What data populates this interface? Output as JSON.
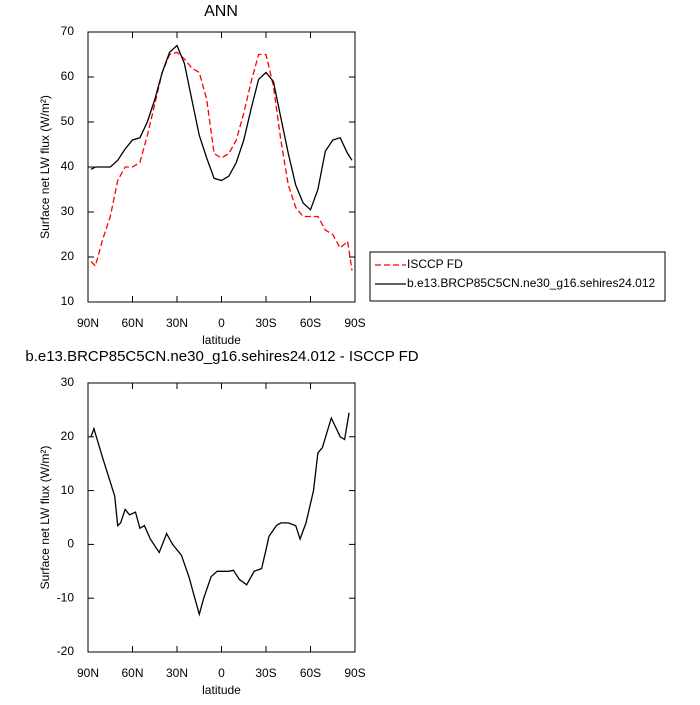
{
  "chart_data": [
    {
      "type": "line",
      "title": "ANN",
      "xlabel": "latitude",
      "ylabel": "Surface net LW flux (W/m²)",
      "x": [
        88,
        85,
        80,
        75,
        70,
        65,
        60,
        55,
        50,
        45,
        40,
        35,
        30,
        25,
        20,
        15,
        10,
        5,
        0,
        -5,
        -10,
        -15,
        -20,
        -25,
        -30,
        -35,
        -40,
        -45,
        -50,
        -55,
        -60,
        -65,
        -70,
        -75,
        -80,
        -85,
        -88
      ],
      "xlim": [
        90,
        -90
      ],
      "xticks": [
        {
          "value": 90,
          "label": "90N"
        },
        {
          "value": 60,
          "label": "60N"
        },
        {
          "value": 30,
          "label": "30N"
        },
        0,
        {
          "value": -30,
          "label": "30S"
        },
        {
          "value": -60,
          "label": "60S"
        },
        {
          "value": -90,
          "label": "90S"
        }
      ],
      "ylim": [
        10,
        70
      ],
      "yticks": [
        10,
        20,
        30,
        40,
        50,
        60,
        70
      ],
      "legend": "outside-right",
      "series": [
        {
          "name": "ISCCP FD",
          "color": "#ff0000",
          "dash": true,
          "values": [
            19,
            18,
            24,
            29,
            37,
            40,
            40,
            41,
            47,
            54,
            61,
            65,
            65.5,
            64,
            62,
            61,
            55,
            43,
            42,
            43,
            46,
            52,
            59,
            65,
            65,
            58,
            46,
            36,
            31,
            29,
            29,
            29,
            26,
            25,
            22,
            23.5,
            17
          ]
        },
        {
          "name": "b.e13.BRCP85C5CN.ne30_g16.sehires24.012",
          "color": "#000000",
          "dash": false,
          "values": [
            39.5,
            40,
            40,
            40,
            41.5,
            44,
            46,
            46.5,
            50,
            55,
            61,
            65.5,
            67,
            63,
            55,
            47,
            42,
            37.5,
            37,
            38,
            41,
            46,
            53,
            59.5,
            61,
            59,
            51,
            43,
            36,
            32,
            30.5,
            35,
            43.5,
            46,
            46.5,
            43,
            41.5
          ]
        }
      ]
    },
    {
      "type": "line",
      "title": "b.e13.BRCP85C5CN.ne30_g16.sehires24.012 - ISCCP FD",
      "xlabel": "latitude",
      "ylabel": "Surface net LW flux (W/m²)",
      "x": [
        88,
        86,
        80,
        72,
        70,
        68,
        65,
        62,
        58,
        55,
        52,
        48,
        42,
        37,
        33,
        27,
        22,
        18,
        15,
        12,
        7,
        3,
        0,
        -5,
        -8,
        -12,
        -17,
        -22,
        -27,
        -30,
        -32,
        -37,
        -40,
        -45,
        -50,
        -53,
        -57,
        -62,
        -65,
        -68,
        -74,
        -80,
        -83,
        -86
      ],
      "xlim": [
        90,
        -90
      ],
      "xticks": [
        {
          "value": 90,
          "label": "90N"
        },
        {
          "value": 60,
          "label": "60N"
        },
        {
          "value": 30,
          "label": "30N"
        },
        0,
        {
          "value": -30,
          "label": "30S"
        },
        {
          "value": -60,
          "label": "60S"
        },
        {
          "value": -90,
          "label": "90S"
        }
      ],
      "ylim": [
        -20,
        30
      ],
      "yticks": [
        -20,
        -10,
        0,
        10,
        20,
        30
      ],
      "series": [
        {
          "color": "#000000",
          "dash": false,
          "values": [
            20,
            21.5,
            16,
            9,
            3.5,
            4,
            6.5,
            5.5,
            6,
            3,
            3.5,
            1,
            -1.5,
            2,
            0,
            -2,
            -6,
            -10,
            -13,
            -10,
            -6,
            -5,
            -5,
            -5,
            -4.8,
            -6.5,
            -7.5,
            -5,
            -4.5,
            -1,
            1.5,
            3.5,
            4,
            4,
            3.5,
            1,
            4,
            10,
            17,
            18,
            23.5,
            20,
            19.5,
            24.5
          ]
        }
      ]
    }
  ]
}
